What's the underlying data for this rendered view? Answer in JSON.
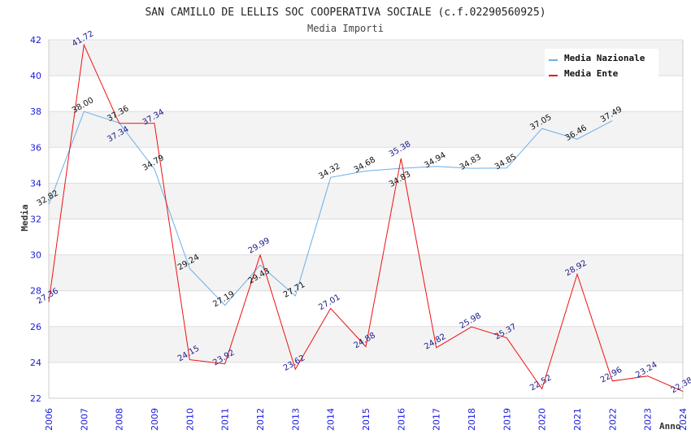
{
  "chart_data": {
    "type": "line",
    "title": "SAN CAMILLO DE LELLIS SOC COOPERATIVA SOCIALE (c.f.02290560925)",
    "subtitle": "Media Importi",
    "xlabel": "Anno",
    "ylabel": "Media",
    "ylim": [
      22,
      42
    ],
    "yticks": [
      22,
      24,
      26,
      28,
      30,
      32,
      34,
      36,
      38,
      40,
      42
    ],
    "x": [
      2006,
      2007,
      2008,
      2009,
      2010,
      2011,
      2012,
      2013,
      2014,
      2015,
      2016,
      2017,
      2018,
      2019,
      2020,
      2021,
      2022,
      2023,
      2024
    ],
    "grid": true,
    "legend_position": "top-right",
    "series": [
      {
        "name": "Media Nazionale",
        "color": "#6aaee8",
        "values": [
          32.82,
          38.0,
          37.36,
          34.79,
          29.24,
          27.19,
          29.43,
          27.71,
          34.32,
          34.68,
          34.83,
          34.94,
          34.83,
          34.85,
          37.05,
          36.46,
          37.49,
          null,
          null
        ]
      },
      {
        "name": "Media Ente",
        "color": "#ee1111",
        "values": [
          27.36,
          41.72,
          37.34,
          37.34,
          24.15,
          23.92,
          29.99,
          23.62,
          27.01,
          24.88,
          35.38,
          24.82,
          25.98,
          25.37,
          22.52,
          28.92,
          22.96,
          23.24,
          22.38
        ]
      }
    ]
  }
}
